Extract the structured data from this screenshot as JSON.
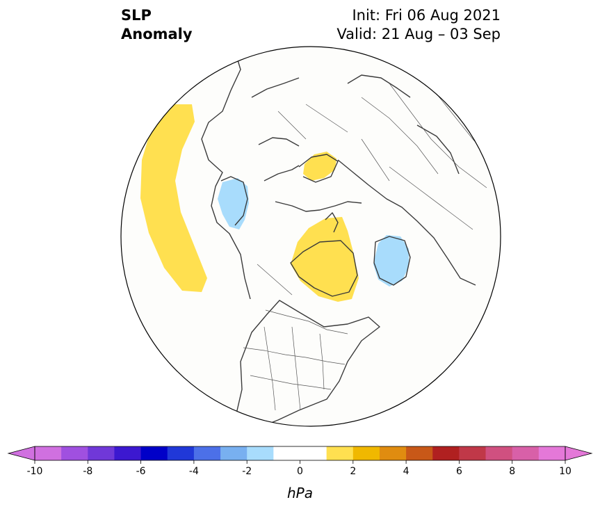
{
  "title": {
    "variable": "SLP",
    "subvariable": "Anomaly",
    "init": "Init: Fri 06 Aug 2021",
    "valid": "Valid: 21 Aug – 03 Sep"
  },
  "colorbar": {
    "unit": "hPa",
    "ticks": [
      "-10",
      "-8",
      "-6",
      "-4",
      "-2",
      "0",
      "2",
      "4",
      "6",
      "8",
      "10"
    ],
    "bins": [
      {
        "from": -10,
        "to": -9,
        "color": "#d070e0"
      },
      {
        "from": -9,
        "to": -8,
        "color": "#a050e0"
      },
      {
        "from": -8,
        "to": -7,
        "color": "#7038d8"
      },
      {
        "from": -7,
        "to": -6,
        "color": "#3c18d0"
      },
      {
        "from": -6,
        "to": -5,
        "color": "#0000c8"
      },
      {
        "from": -5,
        "to": -4,
        "color": "#2038d8"
      },
      {
        "from": -4,
        "to": -3,
        "color": "#4c70e8"
      },
      {
        "from": -3,
        "to": -2,
        "color": "#78b0f0"
      },
      {
        "from": -2,
        "to": -1,
        "color": "#a8dcfc"
      },
      {
        "from": -1,
        "to": 0,
        "color": "#ffffff"
      },
      {
        "from": 0,
        "to": 1,
        "color": "#ffffff"
      },
      {
        "from": 1,
        "to": 2,
        "color": "#ffe050"
      },
      {
        "from": 2,
        "to": 3,
        "color": "#f0b800"
      },
      {
        "from": 3,
        "to": 4,
        "color": "#e08c10"
      },
      {
        "from": 4,
        "to": 5,
        "color": "#c85818"
      },
      {
        "from": 5,
        "to": 6,
        "color": "#b02020"
      },
      {
        "from": 6,
        "to": 7,
        "color": "#c03848"
      },
      {
        "from": 7,
        "to": 8,
        "color": "#d05080"
      },
      {
        "from": 8,
        "to": 9,
        "color": "#d860a8"
      },
      {
        "from": 9,
        "to": 10,
        "color": "#e478d8"
      }
    ],
    "under_color": "#d070e0",
    "over_color": "#e478d8"
  },
  "map": {
    "projection": "north-polar-stereographic",
    "anomalies": [
      {
        "name": "north-pacific-positive",
        "sign": "positive",
        "range": "1 to 2 hPa"
      },
      {
        "name": "hudson-bay-negative",
        "sign": "negative",
        "range": "-1 to -2 hPa"
      },
      {
        "name": "greenland-positive",
        "sign": "positive",
        "range": "1 to 2 hPa"
      },
      {
        "name": "scandinavia-positive",
        "sign": "positive",
        "range": "1 to 2 hPa"
      },
      {
        "name": "siberia-negative",
        "sign": "negative",
        "range": "-1 to -2 hPa"
      }
    ]
  }
}
